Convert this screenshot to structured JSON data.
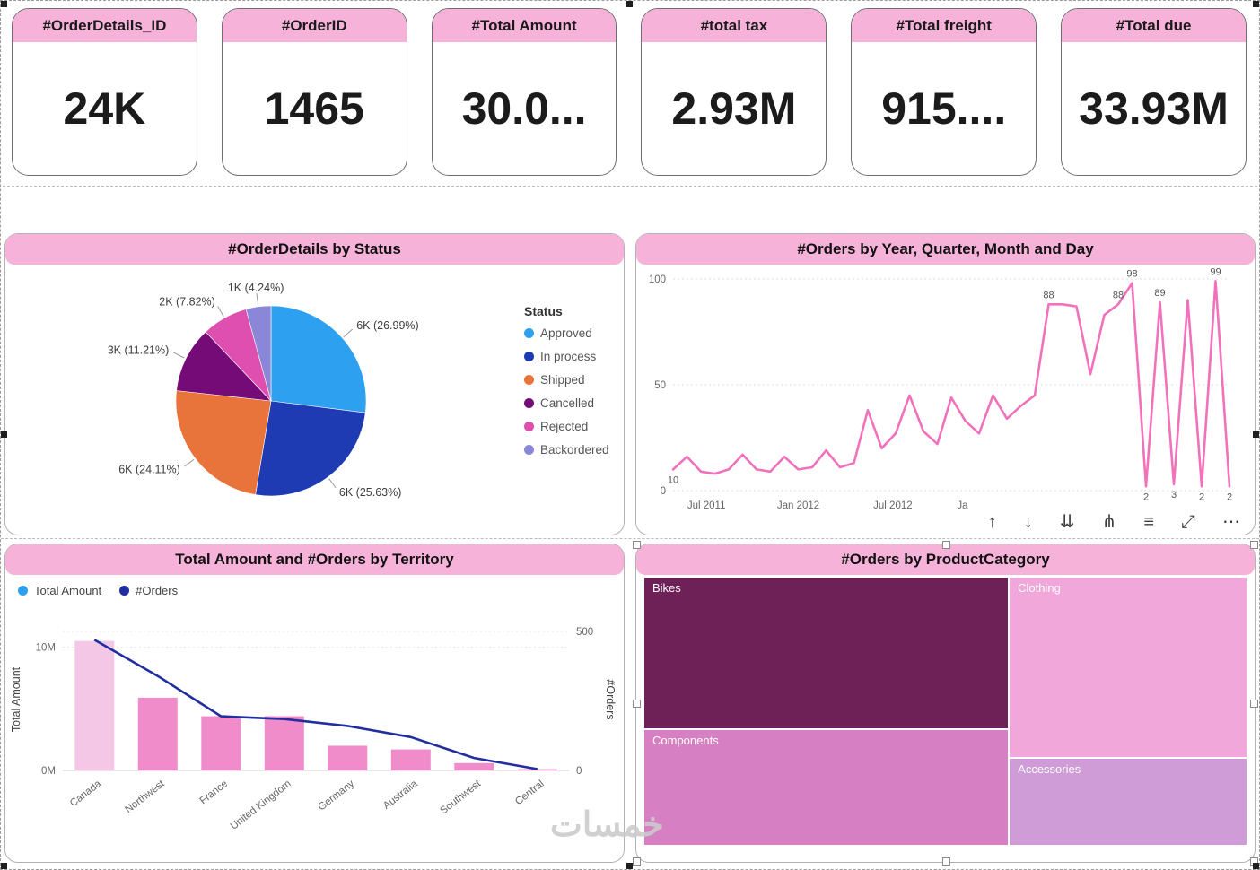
{
  "theme": {
    "header_pink": "#F7B2DA"
  },
  "cards": [
    {
      "title": "#OrderDetails_ID",
      "value": "24K"
    },
    {
      "title": "#OrderID",
      "value": "1465"
    },
    {
      "title": "#Total Amount",
      "value": "30.0..."
    },
    {
      "title": "#total tax",
      "value": "2.93M"
    },
    {
      "title": "#Total freight",
      "value": "915...."
    },
    {
      "title": "#Total due",
      "value": "33.93M"
    }
  ],
  "chart_data": [
    {
      "type": "pie",
      "title": "#OrderDetails by Status",
      "legend_title": "Status",
      "labels": [
        "Approved",
        "In process",
        "Shipped",
        "Cancelled",
        "Rejected",
        "Backordered"
      ],
      "values": [
        26.99,
        25.63,
        24.11,
        11.21,
        7.82,
        4.24
      ],
      "value_labels": [
        "6K (26.99%)",
        "6K (25.63%)",
        "6K (24.11%)",
        "3K (11.21%)",
        "2K (7.82%)",
        "1K (4.24%)"
      ],
      "colors": [
        "#2EA0F0",
        "#1F3BB3",
        "#E8743B",
        "#750B77",
        "#DE4FAF",
        "#8A86D8"
      ]
    },
    {
      "type": "line",
      "title": "#Orders by Year, Quarter, Month and Day",
      "color": "#F172BA",
      "ylim": [
        0,
        100
      ],
      "yticks": [
        100,
        50,
        0
      ],
      "xticks": [
        {
          "label": "Jul 2011",
          "pos": 0.06
        },
        {
          "label": "Jan 2012",
          "pos": 0.225
        },
        {
          "label": "Jul 2012",
          "pos": 0.395
        },
        {
          "label": "Ja",
          "pos": 0.52
        }
      ],
      "points": [
        {
          "v": 10,
          "l": "10",
          "lp": "below"
        },
        {
          "v": 16
        },
        {
          "v": 9
        },
        {
          "v": 8
        },
        {
          "v": 10
        },
        {
          "v": 17
        },
        {
          "v": 10
        },
        {
          "v": 9
        },
        {
          "v": 16
        },
        {
          "v": 10
        },
        {
          "v": 11
        },
        {
          "v": 19
        },
        {
          "v": 11
        },
        {
          "v": 13
        },
        {
          "v": 38
        },
        {
          "v": 20
        },
        {
          "v": 27
        },
        {
          "v": 45
        },
        {
          "v": 28
        },
        {
          "v": 22
        },
        {
          "v": 44
        },
        {
          "v": 33
        },
        {
          "v": 27
        },
        {
          "v": 45
        },
        {
          "v": 34
        },
        {
          "v": 40
        },
        {
          "v": 45
        },
        {
          "v": 88,
          "l": "88"
        },
        {
          "v": 88
        },
        {
          "v": 87
        },
        {
          "v": 55
        },
        {
          "v": 83
        },
        {
          "v": 88,
          "l": "88"
        },
        {
          "v": 98,
          "l": "98"
        },
        {
          "v": 2,
          "l": "2",
          "lp": "below"
        },
        {
          "v": 89,
          "l": "89"
        },
        {
          "v": 3,
          "l": "3",
          "lp": "below"
        },
        {
          "v": 90
        },
        {
          "v": 2,
          "l": "2",
          "lp": "below"
        },
        {
          "v": 99,
          "l": "99"
        },
        {
          "v": 2,
          "l": "2",
          "lp": "below"
        }
      ]
    },
    {
      "type": "combo",
      "title": "Total Amount and #Orders by Territory",
      "categories": [
        "Canada",
        "Northwest",
        "France",
        "United Kingdom",
        "Germany",
        "Australia",
        "Southwest",
        "Central"
      ],
      "series": [
        {
          "name": "Total Amount",
          "chart": "bar",
          "values_millions": [
            10.5,
            5.9,
            4.4,
            4.4,
            2.0,
            1.7,
            0.6,
            0.1
          ],
          "legend_color": "#2EA0F0",
          "bar_colors": [
            "#F5C7E6",
            "#F08CC9",
            "#F08CC9",
            "#F08CC9",
            "#F08CC9",
            "#F08CC9",
            "#F08CC9",
            "#F08CC9"
          ]
        },
        {
          "name": "#Orders",
          "chart": "line",
          "values": [
            470,
            340,
            195,
            185,
            160,
            120,
            45,
            5
          ],
          "color": "#202E9E"
        }
      ],
      "left_axis": {
        "label": "Total Amount",
        "max": 11.5,
        "tick_values": [
          10,
          0
        ],
        "tick_labels": [
          "10M",
          "0M"
        ]
      },
      "right_axis": {
        "label": "#Orders",
        "max": 510,
        "tick_values": [
          500,
          0
        ],
        "tick_labels": [
          "500",
          "0"
        ]
      }
    },
    {
      "type": "treemap",
      "title": "#Orders by ProductCategory",
      "items": [
        {
          "label": "Bikes",
          "color": "#6E2157",
          "x": 0,
          "y": 0,
          "w": 0.605,
          "h": 0.565
        },
        {
          "label": "Components",
          "color": "#D77FC3",
          "x": 0,
          "y": 0.565,
          "w": 0.605,
          "h": 0.435
        },
        {
          "label": "Clothing",
          "color": "#F2A7DB",
          "x": 0.605,
          "y": 0,
          "w": 0.395,
          "h": 0.672
        },
        {
          "label": "Accessories",
          "color": "#CF9CD8",
          "x": 0.605,
          "y": 0.672,
          "w": 0.395,
          "h": 0.328
        }
      ]
    }
  ],
  "toolbar": {
    "icons": [
      {
        "name": "drill-up",
        "glyph": "↑"
      },
      {
        "name": "drill-down",
        "glyph": "↓"
      },
      {
        "name": "expand-next-level",
        "glyph": "⇊"
      },
      {
        "name": "drill-mode",
        "glyph": "⋔"
      },
      {
        "name": "filters",
        "glyph": "≡"
      },
      {
        "name": "focus-mode",
        "glyph": "⤢"
      },
      {
        "name": "more-options",
        "glyph": "⋯"
      }
    ]
  },
  "watermark": {
    "text": "خمسات"
  }
}
